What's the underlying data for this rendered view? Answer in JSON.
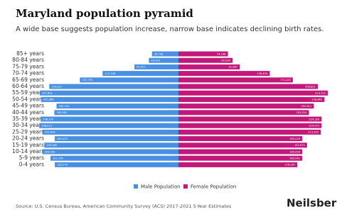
{
  "chart_data": {
    "type": "pyramid",
    "title": "Maryland population pyramid",
    "subtitle": "A wide base suggests population increase, narrow base indicates declining birth rates.",
    "categories": [
      "85+ years",
      "80-84 years",
      "75-79 years",
      "70-74 years",
      "65-69 years",
      "60-64 years",
      "55-59 years",
      "50-54 years",
      "45-49 years",
      "40-44 years",
      "35-39 years",
      "30-34 years",
      "25-29 years",
      "20-24 years",
      "15-19 years",
      "10-14 years",
      "5-9 years",
      "0-4 years"
    ],
    "series": [
      {
        "name": "Male Population",
        "color": "#4a90e2",
        "values": [
          39736,
          44353,
          65952,
          113708,
          147755,
          193621,
          207801,
          205866,
          182714,
          185981,
          206370,
          208619,
          203696,
          185423,
          200960,
          204000,
          191790,
          185279
        ],
        "value_labels": [
          "39,736",
          "44,353",
          "65,952",
          "113,708",
          "147,755",
          "193,621",
          "207,801",
          "205,866",
          "182,714",
          "185,981",
          "206,370",
          "208,619",
          "203,696",
          "185,423",
          "200,960",
          "204,000",
          "191,790",
          "185,279"
        ]
      },
      {
        "name": "Female Population",
        "color": "#c2187a",
        "values": [
          74148,
          80934,
          91867,
          136876,
          171423,
          208801,
          223722,
          218861,
          202811,
          195514,
          214520,
          214472,
          213202,
          185416,
          192675,
          185426,
          185441,
          178187
        ],
        "value_labels": [
          "74,148",
          "80,934",
          "91,867",
          "136,876",
          "171,423",
          "208,801",
          "223,722",
          "218,861",
          "202,811",
          "195,514",
          "214,520",
          "214,472",
          "213,202",
          "185,416",
          "192,675",
          "185,426",
          "185,441",
          "178,187"
        ]
      }
    ],
    "source": "Source: U.S. Census Bureau, American Community Survey (ACS) 2017-2021 5-Year Estimates",
    "brand": "Neilsberg"
  }
}
